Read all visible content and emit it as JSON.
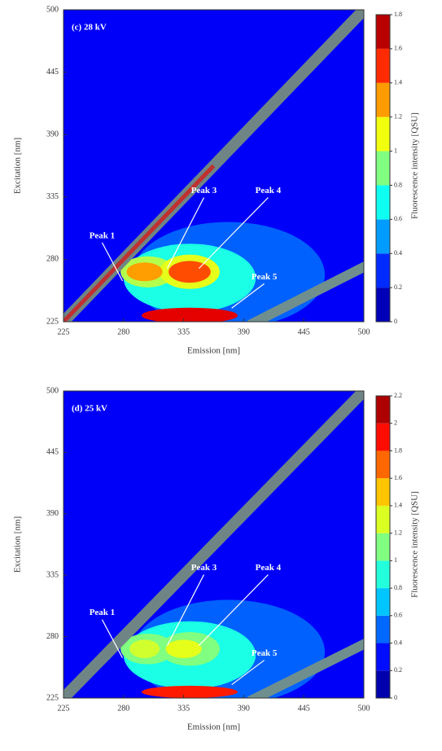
{
  "chart_data": [
    {
      "type": "contour",
      "title": "(c) 28 kV",
      "xlabel": "Emission [nm]",
      "ylabel": "Excitation [nm]",
      "colorbar_label": "Fluorescence intensity [QSU]",
      "xlim": [
        225,
        500
      ],
      "ylim": [
        225,
        500
      ],
      "xticks": [
        225,
        280,
        335,
        390,
        445,
        500
      ],
      "yticks": [
        225,
        280,
        335,
        390,
        445,
        500
      ],
      "clim": [
        0,
        1.8
      ],
      "cticks": [
        0,
        0.2,
        0.4,
        0.6,
        0.8,
        1,
        1.2,
        1.4,
        1.6,
        1.8
      ],
      "annotations": [
        {
          "text": "Peak 1",
          "x": 279,
          "y": 261
        },
        {
          "text": "Peak 3",
          "x": 320,
          "y": 272
        },
        {
          "text": "Peak 4",
          "x": 349,
          "y": 272
        },
        {
          "text": "Peak 5",
          "x": 379,
          "y": 237
        }
      ]
    },
    {
      "type": "contour",
      "title": "(d) 25 kV",
      "xlabel": "Emission [nm]",
      "ylabel": "Excitation [nm]",
      "colorbar_label": "Fluorescence intensity [QSU]",
      "xlim": [
        225,
        500
      ],
      "ylim": [
        225,
        500
      ],
      "xticks": [
        225,
        280,
        335,
        390,
        445,
        500
      ],
      "yticks": [
        225,
        280,
        335,
        390,
        445,
        500
      ],
      "clim": [
        0,
        2.2
      ],
      "cticks": [
        0,
        0.2,
        0.4,
        0.6,
        0.8,
        1,
        1.2,
        1.4,
        1.6,
        1.8,
        2,
        2.2
      ],
      "annotations": [
        {
          "text": "Peak 1",
          "x": 279,
          "y": 261
        },
        {
          "text": "Peak 3",
          "x": 320,
          "y": 272
        },
        {
          "text": "Peak 4",
          "x": 349,
          "y": 272
        },
        {
          "text": "Peak 5",
          "x": 379,
          "y": 237
        }
      ]
    }
  ]
}
